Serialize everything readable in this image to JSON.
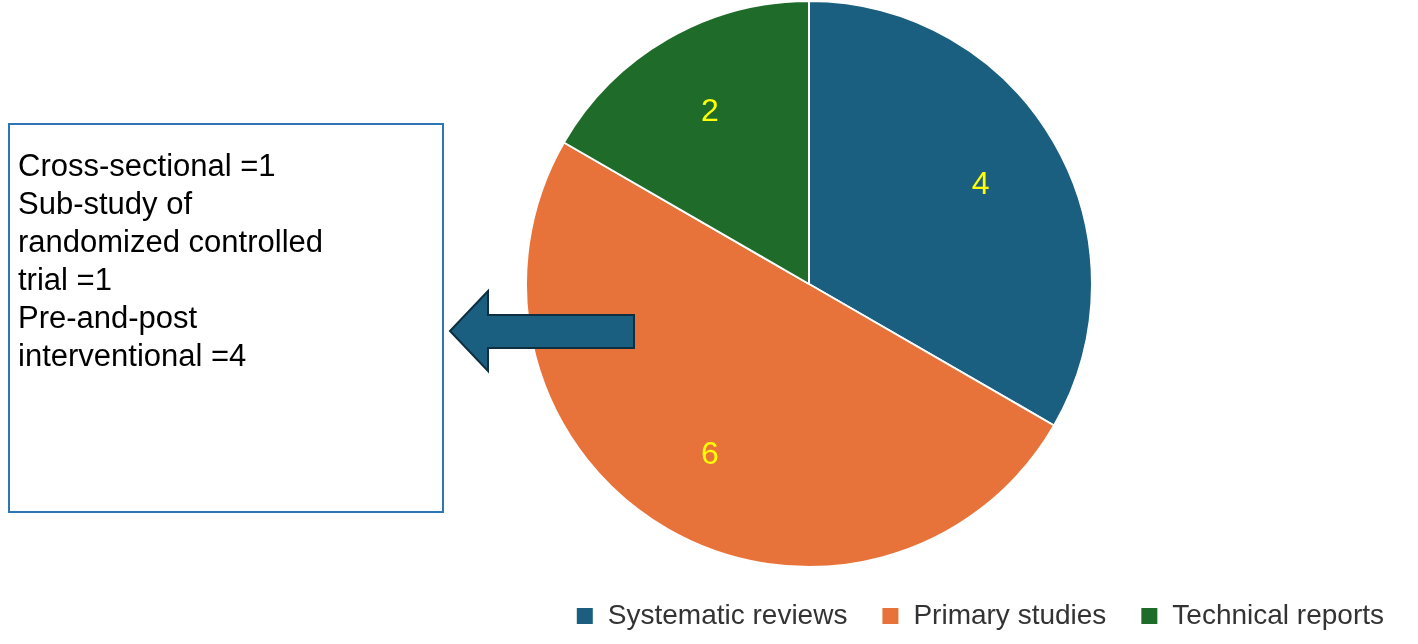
{
  "chart_data": {
    "type": "pie",
    "categories": [
      "Systematic reviews",
      "Primary studies",
      "Technical reports"
    ],
    "values": [
      4,
      6,
      2
    ],
    "colors": [
      "#1a5f80",
      "#e8733a",
      "#1e6b2a"
    ],
    "data_labels": true,
    "legend": "bottom right",
    "annotations": [
      "Cross-sectional =1",
      "Sub-study of randomized controlled trial =1",
      "Pre-and-post interventional =4"
    ]
  }
}
